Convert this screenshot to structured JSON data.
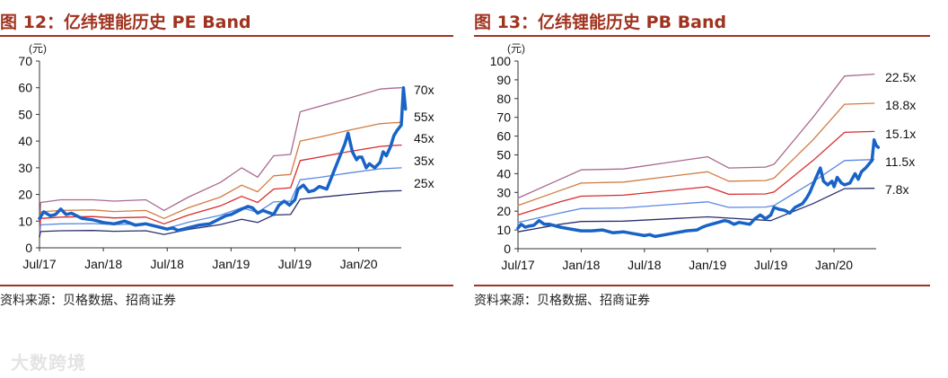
{
  "source_label": "资料来源：贝格数据、招商证券",
  "watermark": "大数跨境",
  "charts": [
    {
      "title": "图 12：亿纬锂能历史 PE Band",
      "unit": "(元)"
    },
    {
      "title": "图 13：亿纬锂能历史 PB Band",
      "unit": "(元)"
    }
  ],
  "chart_data": [
    {
      "type": "line",
      "title": "图 12：亿纬锂能历史 PE Band",
      "ylabel": "(元)",
      "ylim": [
        0,
        70
      ],
      "yticks": [
        0,
        10,
        20,
        30,
        40,
        50,
        60,
        70
      ],
      "xlim": [
        0,
        34
      ],
      "xticks": [
        {
          "x": 0,
          "label": "Jul/17"
        },
        {
          "x": 6,
          "label": "Jan/18"
        },
        {
          "x": 12,
          "label": "Jul/18"
        },
        {
          "x": 18,
          "label": "Jan/19"
        },
        {
          "x": 24,
          "label": "Jul/19"
        },
        {
          "x": 30,
          "label": "Jan/20"
        }
      ],
      "series": [
        {
          "name": "70x",
          "color": "#a86a8e",
          "x": [
            0,
            0.1,
            2,
            5,
            7,
            10,
            11.7,
            14,
            17,
            19,
            20.5,
            22,
            23.6,
            24.5,
            26.3,
            29,
            32,
            33,
            34
          ],
          "y": [
            4,
            17,
            18,
            18,
            17.5,
            18,
            14,
            19,
            24.5,
            30,
            26.5,
            34.5,
            35,
            51,
            53,
            56,
            59.5,
            59.8,
            60
          ]
        },
        {
          "name": "55x",
          "color": "#d27b43",
          "x": [
            0,
            0.1,
            2,
            5,
            7,
            10,
            11.7,
            14,
            17,
            19,
            20.5,
            22,
            23.6,
            24.5,
            26.3,
            29,
            32,
            33,
            34
          ],
          "y": [
            4,
            13.5,
            14,
            14.2,
            13.6,
            14,
            11,
            15,
            19,
            23.5,
            21,
            27,
            27.5,
            40,
            41.5,
            44,
            46.5,
            46.8,
            47
          ]
        },
        {
          "name": "45x",
          "color": "#d92c2c",
          "x": [
            0,
            0.1,
            2,
            5,
            7,
            10,
            11.7,
            14,
            17,
            19,
            20.5,
            22,
            23.6,
            24.5,
            26.3,
            29,
            32,
            33,
            34
          ],
          "y": [
            4,
            11,
            11.5,
            11.7,
            11.2,
            11.5,
            9,
            12.3,
            15.7,
            19.3,
            17,
            22,
            22.5,
            32.7,
            34,
            36,
            38,
            38.3,
            38.5
          ]
        },
        {
          "name": "35x",
          "color": "#5b88e0",
          "x": [
            0,
            0.1,
            2,
            5,
            7,
            10,
            11.7,
            14,
            17,
            19,
            20.5,
            22,
            23.6,
            24.5,
            26.3,
            29,
            32,
            33,
            34
          ],
          "y": [
            4,
            8.6,
            9,
            9.1,
            8.7,
            9,
            7,
            9.6,
            12.2,
            15,
            13.3,
            17.2,
            17.5,
            25.5,
            26.4,
            28,
            29.6,
            29.8,
            30
          ]
        },
        {
          "name": "25x",
          "color": "#2b2f6e",
          "x": [
            0,
            0.1,
            2,
            5,
            7,
            10,
            11.7,
            14,
            17,
            19,
            20.5,
            22,
            23.6,
            24.5,
            26.3,
            29,
            32,
            33,
            34
          ],
          "y": [
            4,
            6.1,
            6.4,
            6.5,
            6.2,
            6.4,
            5,
            6.9,
            8.7,
            10.7,
            9.5,
            12.3,
            12.5,
            18.2,
            18.9,
            20,
            21.1,
            21.3,
            21.4
          ]
        },
        {
          "name": "",
          "color": "#1863c7",
          "width": 3.5,
          "x": [
            0,
            0.4,
            1,
            1.5,
            2,
            2.5,
            3,
            4,
            5,
            6,
            7,
            8,
            9,
            10,
            11,
            12,
            12.5,
            13,
            14,
            15,
            16,
            17,
            17.5,
            18,
            19,
            19.6,
            20,
            20.5,
            21,
            22,
            22.5,
            23,
            23.5,
            24,
            24.3,
            24.8,
            25.3,
            25.8,
            26.3,
            27,
            27.4,
            27.7,
            28,
            28.3,
            28.7,
            29,
            29.4,
            29.8,
            30,
            30.3,
            30.7,
            31,
            31.5,
            32,
            32.3,
            32.6,
            33,
            33.3,
            33.6,
            34,
            34.2,
            34.4
          ],
          "y": [
            11,
            13.5,
            12,
            12.5,
            14.5,
            12.5,
            13,
            11,
            10.5,
            9.5,
            9,
            10,
            8.5,
            9,
            8,
            7,
            7.5,
            6.5,
            7.5,
            8.5,
            9,
            11,
            12,
            12.5,
            14.5,
            15.5,
            15,
            13,
            14,
            12.5,
            16,
            17.5,
            16,
            18,
            22,
            23.5,
            21,
            21.5,
            23,
            22,
            26,
            29,
            32,
            35,
            39,
            43,
            36,
            33,
            34,
            34,
            30,
            31.5,
            30,
            32,
            36,
            34.5,
            38,
            42,
            44,
            46,
            60,
            52
          ]
        }
      ],
      "band_labels": [
        "70x",
        "55x",
        "45x",
        "35x",
        "25x"
      ]
    },
    {
      "type": "line",
      "title": "图 13：亿纬锂能历史 PB Band",
      "ylabel": "(元)",
      "ylim": [
        0,
        100
      ],
      "yticks": [
        0,
        10,
        20,
        30,
        40,
        50,
        60,
        70,
        80,
        90,
        100
      ],
      "xlim": [
        0,
        34
      ],
      "xticks": [
        {
          "x": 0,
          "label": "Jul/17"
        },
        {
          "x": 6,
          "label": "Jan/18"
        },
        {
          "x": 12,
          "label": "Jul/18"
        },
        {
          "x": 18,
          "label": "Jan/19"
        },
        {
          "x": 24,
          "label": "Jul/19"
        },
        {
          "x": 30,
          "label": "Jan/20"
        }
      ],
      "series": [
        {
          "name": "22.5x",
          "color": "#a86a8e",
          "x": [
            0,
            4,
            6,
            10,
            18,
            20,
            23.5,
            24.3,
            28,
            31,
            33.8
          ],
          "y": [
            27,
            37,
            42,
            42.5,
            49,
            43,
            43.5,
            45,
            70,
            92,
            93
          ]
        },
        {
          "name": "18.8x",
          "color": "#d27b43",
          "x": [
            0,
            4,
            6,
            10,
            18,
            20,
            23.5,
            24.3,
            28,
            31,
            33.8
          ],
          "y": [
            23,
            31,
            35,
            35.5,
            41,
            36,
            36.3,
            37.6,
            58,
            77,
            77.5
          ]
        },
        {
          "name": "15.1x",
          "color": "#d92c2c",
          "x": [
            0,
            4,
            6,
            10,
            18,
            20,
            23.5,
            24.3,
            28,
            31,
            33.8
          ],
          "y": [
            18,
            25,
            28,
            28.5,
            33,
            29,
            29.2,
            30.2,
            47,
            62,
            62.5
          ]
        },
        {
          "name": "11.5x",
          "color": "#5b88e0",
          "x": [
            0,
            4,
            6,
            10,
            18,
            20,
            23.5,
            24.3,
            28,
            31,
            33.8
          ],
          "y": [
            14,
            19,
            21.4,
            21.7,
            25,
            22,
            22.2,
            23,
            35.6,
            47,
            47.5
          ]
        },
        {
          "name": "7.8x",
          "color": "#2b2f6e",
          "x": [
            0,
            4,
            6,
            10,
            18,
            24,
            28,
            31,
            33.8
          ],
          "y": [
            9,
            13,
            14.5,
            14.7,
            17,
            15,
            24,
            32,
            32.2
          ]
        },
        {
          "name": "",
          "color": "#1863c7",
          "width": 3.5,
          "x": [
            0,
            0.3,
            0.7,
            1,
            1.5,
            2,
            2.5,
            3,
            4,
            5,
            6,
            7,
            8,
            9,
            10,
            11,
            12,
            12.5,
            13,
            14,
            15,
            16,
            17,
            17.5,
            18,
            19,
            19.6,
            20,
            20.5,
            21,
            22,
            22.5,
            23,
            23.5,
            24,
            24.3,
            24.8,
            25.3,
            25.8,
            26.3,
            27,
            27.4,
            27.7,
            28,
            28.3,
            28.7,
            29,
            29.4,
            29.8,
            30,
            30.3,
            30.7,
            31,
            31.5,
            32,
            32.3,
            32.6,
            33,
            33.3,
            33.6,
            33.8,
            34,
            34.2
          ],
          "y": [
            11,
            13,
            11.5,
            12,
            12.5,
            15,
            13,
            13,
            11.5,
            10.5,
            9.5,
            9.5,
            10,
            8.5,
            9,
            8,
            7,
            7.5,
            6.5,
            7.5,
            8.5,
            9.5,
            10,
            11.5,
            12.5,
            14,
            15,
            14.5,
            13,
            14,
            13,
            16,
            18,
            16,
            18,
            22,
            21,
            20.5,
            19,
            22,
            24,
            27,
            30,
            34,
            38,
            43,
            36,
            34,
            36,
            33,
            38,
            35,
            34,
            35,
            40,
            37,
            41,
            43,
            45,
            47,
            58,
            55,
            54
          ]
        }
      ],
      "band_labels": [
        "22.5x",
        "18.8x",
        "15.1x",
        "11.5x",
        "7.8x"
      ]
    }
  ]
}
